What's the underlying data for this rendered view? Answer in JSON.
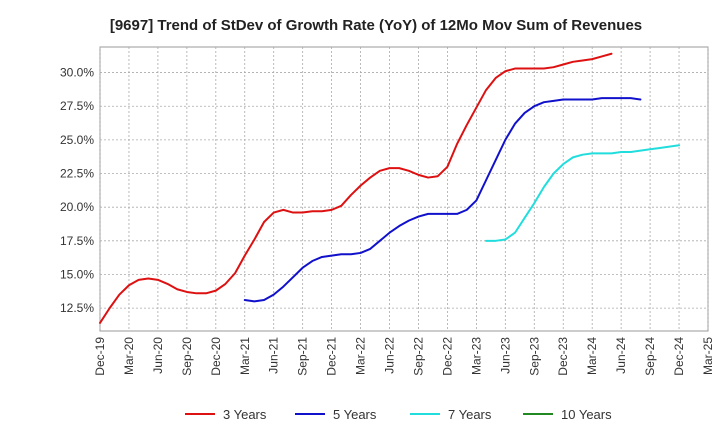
{
  "chart_data": {
    "type": "line",
    "title": "[9697]  Trend of StDev of Growth Rate (YoY) of 12Mo Mov Sum of Revenues",
    "xlabel": "",
    "ylabel": "",
    "x_tick_labels": [
      "Dec-19",
      "Mar-20",
      "Jun-20",
      "Sep-20",
      "Dec-20",
      "Mar-21",
      "Jun-21",
      "Sep-21",
      "Dec-21",
      "Mar-22",
      "Jun-22",
      "Sep-22",
      "Dec-22",
      "Mar-23",
      "Jun-23",
      "Sep-23",
      "Dec-23",
      "Mar-24",
      "Jun-24",
      "Sep-24",
      "Dec-24",
      "Mar-25"
    ],
    "y_ticks": [
      12.5,
      15.0,
      17.5,
      20.0,
      22.5,
      25.0,
      27.5,
      30.0
    ],
    "y_tick_labels": [
      "12.5%",
      "15.0%",
      "17.5%",
      "20.0%",
      "22.5%",
      "25.0%",
      "27.5%",
      "30.0%"
    ],
    "ylim": [
      10.8,
      31.9
    ],
    "x_index_range": [
      0,
      63
    ],
    "legend_position": "bottom",
    "series": [
      {
        "name": "3 Years",
        "color": "#dd1111",
        "start_index": 0,
        "values": [
          11.4,
          12.5,
          13.5,
          14.2,
          14.6,
          14.7,
          14.6,
          14.3,
          13.9,
          13.7,
          13.6,
          13.6,
          13.8,
          14.3,
          15.1,
          16.4,
          17.6,
          18.9,
          19.6,
          19.8,
          19.6,
          19.6,
          19.7,
          19.7,
          19.8,
          20.1,
          20.9,
          21.6,
          22.2,
          22.7,
          22.9,
          22.9,
          22.7,
          22.4,
          22.2,
          22.3,
          23.0,
          24.7,
          26.1,
          27.4,
          28.7,
          29.6,
          30.1,
          30.3,
          30.3,
          30.3,
          30.3,
          30.4,
          30.6,
          30.8,
          30.9,
          31.0,
          31.2,
          31.4
        ]
      },
      {
        "name": "5 Years",
        "color": "#1111cc",
        "start_index": 15,
        "values": [
          13.1,
          13.0,
          13.1,
          13.5,
          14.1,
          14.8,
          15.5,
          16.0,
          16.3,
          16.4,
          16.5,
          16.5,
          16.6,
          16.9,
          17.5,
          18.1,
          18.6,
          19.0,
          19.3,
          19.5,
          19.5,
          19.5,
          19.5,
          19.8,
          20.5,
          22.0,
          23.5,
          25.0,
          26.2,
          27.0,
          27.5,
          27.8,
          27.9,
          28.0,
          28.0,
          28.0,
          28.0,
          28.1,
          28.1,
          28.1,
          28.1,
          28.0
        ]
      },
      {
        "name": "7 Years",
        "color": "#22dddd",
        "start_index": 40,
        "values": [
          17.5,
          17.5,
          17.6,
          18.1,
          19.2,
          20.3,
          21.5,
          22.5,
          23.2,
          23.7,
          23.9,
          24.0,
          24.0,
          24.0,
          24.1,
          24.1,
          24.2,
          24.3,
          24.4,
          24.5,
          24.6
        ]
      },
      {
        "name": "10 Years",
        "color": "#228822",
        "start_index": 0,
        "values": []
      }
    ]
  }
}
